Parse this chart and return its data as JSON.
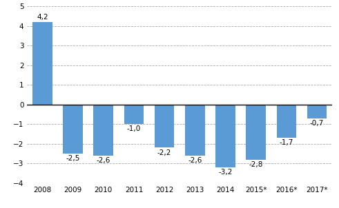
{
  "categories": [
    "2008",
    "2009",
    "2010",
    "2011",
    "2012",
    "2013",
    "2014",
    "2015*",
    "2016*",
    "2017*"
  ],
  "values": [
    4.2,
    -2.5,
    -2.6,
    -1.0,
    -2.2,
    -2.6,
    -3.2,
    -2.8,
    -1.7,
    -0.7
  ],
  "labels": [
    "4,2",
    "-2,5",
    "-2,6",
    "-1,0",
    "-2,2",
    "-2,6",
    "-3,2",
    "-2,8",
    "-1,7",
    "-0,7"
  ],
  "bar_color": "#5b9bd5",
  "ylim": [
    -4,
    5
  ],
  "yticks": [
    -4,
    -3,
    -2,
    -1,
    0,
    1,
    2,
    3,
    4,
    5
  ],
  "background_color": "#ffffff",
  "grid_color": "#aaaaaa",
  "label_fontsize": 7.5,
  "tick_fontsize": 7.5,
  "bar_width": 0.65
}
